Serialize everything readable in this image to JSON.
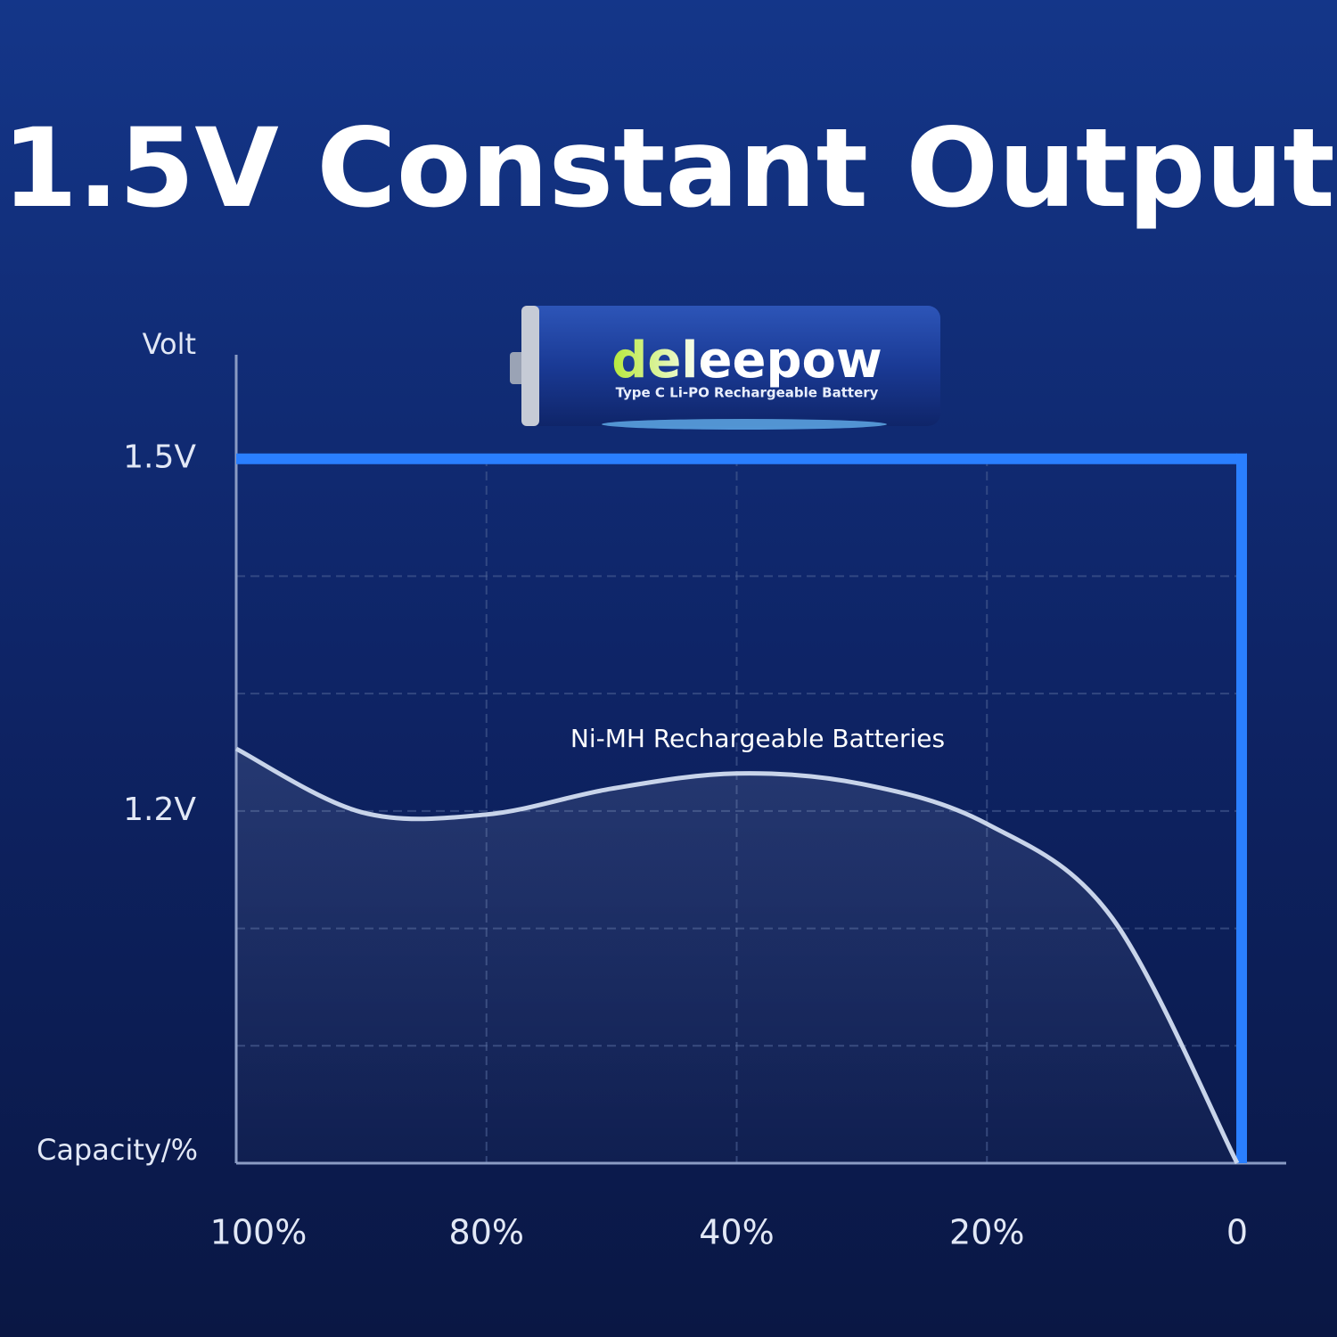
{
  "chart_data": {
    "type": "line",
    "title": "1.5V Constant Output",
    "y_label": "Volt",
    "x_label": "Capacity/%",
    "categories": [
      "100%",
      null,
      "80%",
      null,
      "40%",
      null,
      "20%",
      null,
      "0"
    ],
    "series": [
      {
        "color": "#2a7fff",
        "values": [
          1.5,
          1.5,
          1.5,
          1.5,
          1.5,
          1.5,
          1.5,
          1.5,
          1.5
        ]
      },
      {
        "name": "Ni-MH Rechargeable Batteries",
        "color": "#c8d4ea",
        "values": [
          1.253,
          1.199,
          1.197,
          1.219,
          1.232,
          1.223,
          1.189,
          1.109,
          0.9
        ]
      }
    ],
    "ylim": [
      0.9,
      1.6
    ],
    "yticks": [
      {
        "value": 1.5,
        "label": "1.5V"
      },
      {
        "value": 1.2,
        "label": "1.2V"
      }
    ],
    "minor_yticks": [
      1.4,
      1.3,
      1.1,
      1.0
    ],
    "grid": true
  },
  "product": {
    "brand": "deleepow",
    "caption": "Type C Li-PO Rechargeable Battery"
  }
}
